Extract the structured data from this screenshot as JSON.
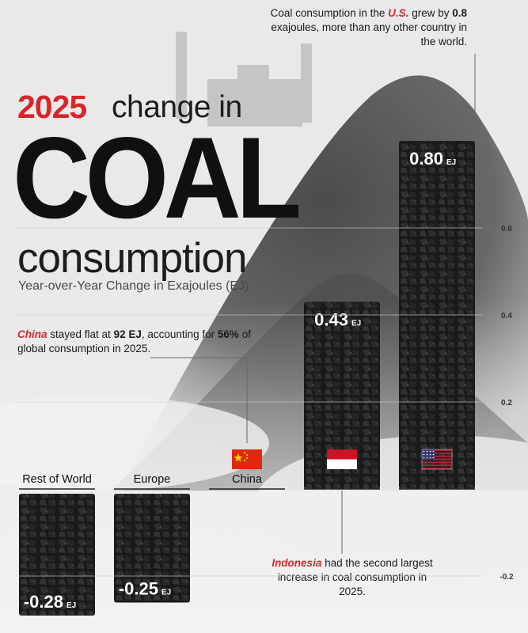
{
  "title": {
    "year": "2025",
    "rest": "change in",
    "big": "COAL",
    "line3": "consumption"
  },
  "subtitle": "Year-over-Year Change in Exajoules (EJ)",
  "annotations": {
    "us": {
      "a": "Coal consumption in the ",
      "country": "U.S.",
      "b": " grew by ",
      "value": "0.8",
      "c": " exajoules, more than any other country in the world."
    },
    "china": {
      "country": "China",
      "a": " stayed flat at ",
      "value": "92 EJ",
      "b": ", accounting for ",
      "share": "56%",
      "c": " of global consumption in 2025."
    },
    "indonesia": {
      "country": "Indonesia",
      "a": " had the second largest increase in coal consumption in 2025."
    }
  },
  "colors": {
    "accent": "#d7262a",
    "coal": "#1b1b1b"
  },
  "chart_data": {
    "type": "bar",
    "categories": [
      "Rest of World",
      "Europe",
      "China",
      "Indonesia",
      "U.S."
    ],
    "values": [
      -0.28,
      -0.25,
      0,
      0.43,
      0.8
    ],
    "value_labels": [
      "-0.28",
      "-0.25",
      "",
      "0.43",
      "0.80"
    ],
    "unit": "EJ",
    "flags": [
      "",
      "",
      "china-flag",
      "indonesia-flag",
      "us-flag"
    ],
    "y_ticks": [
      0.6,
      0.4,
      0.2,
      -0.2
    ],
    "ylim": [
      -0.3,
      0.84
    ]
  }
}
